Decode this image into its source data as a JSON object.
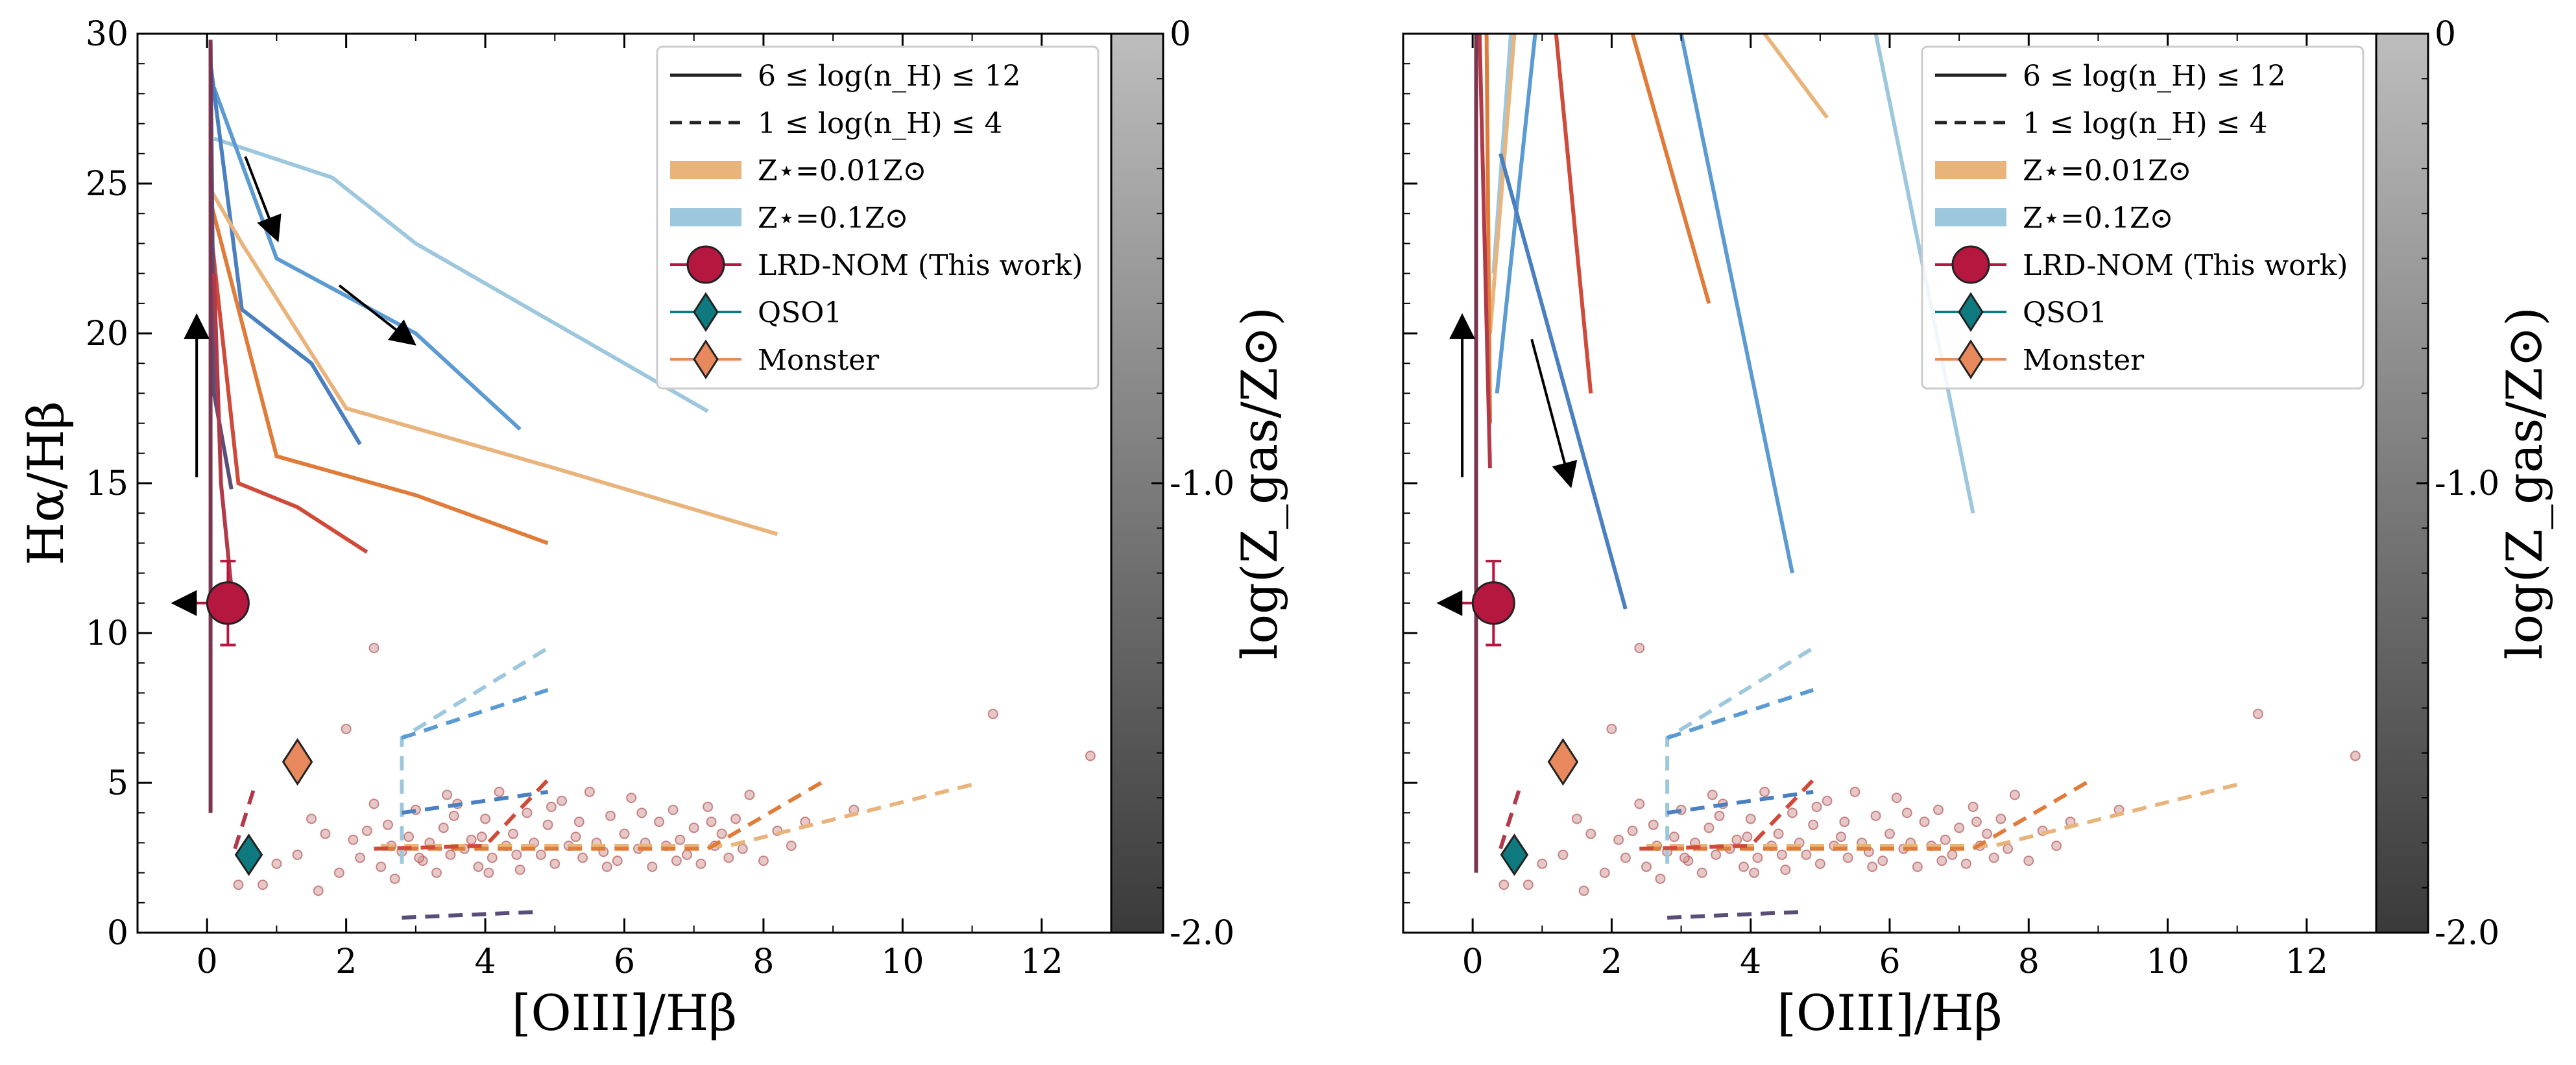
{
  "colors": {
    "lrd": "#b5173f",
    "qso1": "#0e7a7f",
    "monster": "#e8895d",
    "z001_band": "#e9b47c",
    "z01_band": "#9cc7dd",
    "scatter_fill": "#d49a9a",
    "scatter_edge": "#b55a5a",
    "cbar_top": "#bdbdbd",
    "cbar_bottom": "#3a3a3a",
    "arrow": "#000000"
  },
  "chart_data": [
    {
      "type": "scatter",
      "panel": "left",
      "xlabel": "[OIII]/Hβ",
      "ylabel": "Hα/Hβ",
      "xlim": [
        -1,
        13
      ],
      "ylim": [
        0,
        30
      ],
      "xticks": [
        "0",
        "2",
        "4",
        "6",
        "8",
        "10",
        "12"
      ],
      "yticks": [
        "0",
        "5",
        "10",
        "15",
        "20",
        "25",
        "30"
      ],
      "legend_position": "top-right",
      "legend": [
        {
          "label": "6 ≤ log(n_H) ≤ 12",
          "style": "solid-line"
        },
        {
          "label": "1 ≤ log(n_H) ≤ 4",
          "style": "dashed-line"
        },
        {
          "label": "Z⋆=0.01Z⊙",
          "style": "band",
          "color": "#e9b47c"
        },
        {
          "label": "Z⋆=0.1Z⊙",
          "style": "band",
          "color": "#9cc7dd"
        },
        {
          "label": "LRD-NOM (This work)",
          "style": "circle",
          "color": "#b5173f"
        },
        {
          "label": "QSO1",
          "style": "diamond",
          "color": "#0e7a7f"
        },
        {
          "label": "Monster",
          "style": "diamond",
          "color": "#e8895d"
        }
      ],
      "colorbar": {
        "label": "log(Z_gas/Z⊙)",
        "ticks": [
          "0",
          "-1.0",
          "-2.0"
        ],
        "range": [
          -2.0,
          0
        ]
      },
      "points": {
        "lrd_nom": {
          "x": 0.3,
          "y": 11.0,
          "yerr": [
            1.4,
            1.4
          ],
          "upper_limit_x": true
        },
        "qso1": {
          "x": 0.6,
          "y": 2.6,
          "xerr": 0.15,
          "yerr": 0.5
        },
        "monster": {
          "x": 1.3,
          "y": 5.7
        }
      },
      "model_tracks_solid": [
        {
          "color": "#9cc7dd",
          "points": [
            [
              0.1,
              26.5
            ],
            [
              1.8,
              25.2
            ],
            [
              3.0,
              23.0
            ],
            [
              4.5,
              21.0
            ],
            [
              7.2,
              17.4
            ]
          ]
        },
        {
          "color": "#5b9bd1",
          "points": [
            [
              0.1,
              28.2
            ],
            [
              1.0,
              22.5
            ],
            [
              3.0,
              20.0
            ],
            [
              4.5,
              16.8
            ]
          ]
        },
        {
          "color": "#4a7fc0",
          "points": [
            [
              0.05,
              29.0
            ],
            [
              0.5,
              20.8
            ],
            [
              1.5,
              19.0
            ],
            [
              2.2,
              16.3
            ]
          ]
        },
        {
          "color": "#e9b47c",
          "points": [
            [
              0.05,
              24.8
            ],
            [
              0.5,
              23.0
            ],
            [
              2.0,
              17.5
            ],
            [
              5.0,
              15.5
            ],
            [
              8.2,
              13.3
            ]
          ]
        },
        {
          "color": "#e07b39",
          "points": [
            [
              0.05,
              24.4
            ],
            [
              1.0,
              15.9
            ],
            [
              3.0,
              14.6
            ],
            [
              4.9,
              13.0
            ]
          ]
        },
        {
          "color": "#d04a3a",
          "points": [
            [
              0.05,
              23.5
            ],
            [
              0.45,
              15.0
            ],
            [
              1.3,
              14.2
            ],
            [
              2.3,
              12.7
            ]
          ]
        },
        {
          "color": "#5a4e78",
          "points": [
            [
              0.05,
              29.7
            ],
            [
              0.1,
              18.0
            ],
            [
              0.35,
              14.8
            ]
          ]
        },
        {
          "color": "#7a3550",
          "points": [
            [
              0.05,
              29.8
            ],
            [
              0.05,
              4.0
            ]
          ]
        },
        {
          "color": "#b23a48",
          "points": [
            [
              0.1,
              22.0
            ],
            [
              0.2,
              15.0
            ],
            [
              0.35,
              11.5
            ]
          ]
        }
      ],
      "model_tracks_dashed": [
        {
          "color": "#9cc7dd",
          "points": [
            [
              2.8,
              2.3
            ],
            [
              2.8,
              6.5
            ],
            [
              4.9,
              9.5
            ]
          ]
        },
        {
          "color": "#5b9bd1",
          "points": [
            [
              2.8,
              6.5
            ],
            [
              4.9,
              8.1
            ]
          ]
        },
        {
          "color": "#4a7fc0",
          "points": [
            [
              2.8,
              4.0
            ],
            [
              4.9,
              4.7
            ]
          ]
        },
        {
          "color": "#e9b47c",
          "points": [
            [
              2.5,
              2.9
            ],
            [
              7.5,
              2.9
            ],
            [
              11.1,
              5.0
            ]
          ]
        },
        {
          "color": "#e07b39",
          "points": [
            [
              2.5,
              2.8
            ],
            [
              7.2,
              2.8
            ],
            [
              8.9,
              5.1
            ]
          ]
        },
        {
          "color": "#d04a3a",
          "points": [
            [
              2.4,
              2.8
            ],
            [
              4.0,
              2.9
            ],
            [
              4.9,
              5.1
            ]
          ]
        },
        {
          "color": "#5a4e78",
          "points": [
            [
              2.8,
              0.5
            ],
            [
              4.8,
              0.7
            ]
          ]
        },
        {
          "color": "#b23a48",
          "points": [
            [
              0.4,
              2.8
            ],
            [
              0.7,
              5.0
            ]
          ]
        }
      ],
      "arrows": [
        {
          "from": [
            -0.15,
            15.2
          ],
          "to": [
            -0.15,
            20.5
          ]
        },
        {
          "from": [
            0.55,
            25.9
          ],
          "to": [
            1.0,
            23.2
          ]
        },
        {
          "from": [
            1.9,
            21.6
          ],
          "to": [
            2.95,
            19.7
          ]
        }
      ]
    },
    {
      "type": "scatter",
      "panel": "right",
      "xlabel": "[OIII]/Hβ",
      "ylabel": "",
      "xlim": [
        -1,
        13
      ],
      "ylim": [
        0,
        30
      ],
      "xticks": [
        "0",
        "2",
        "4",
        "6",
        "8",
        "10",
        "12"
      ],
      "yticks": [],
      "legend_position": "top-right",
      "legend": [
        {
          "label": "6 ≤ log(n_H) ≤ 12",
          "style": "solid-line"
        },
        {
          "label": "1 ≤ log(n_H) ≤ 4",
          "style": "dashed-line"
        },
        {
          "label": "Z⋆=0.01Z⊙",
          "style": "band",
          "color": "#e9b47c"
        },
        {
          "label": "Z⋆=0.1Z⊙",
          "style": "band",
          "color": "#9cc7dd"
        },
        {
          "label": "LRD-NOM (This work)",
          "style": "circle",
          "color": "#b5173f"
        },
        {
          "label": "QSO1",
          "style": "diamond",
          "color": "#0e7a7f"
        },
        {
          "label": "Monster",
          "style": "diamond",
          "color": "#e8895d"
        }
      ],
      "colorbar": {
        "label": "log(Z_gas/Z⊙)",
        "ticks": [
          "0",
          "-1.0",
          "-2.0"
        ],
        "range": [
          -2.0,
          0
        ]
      },
      "points": {
        "lrd_nom": {
          "x": 0.3,
          "y": 11.0,
          "yerr": [
            1.4,
            1.4
          ],
          "upper_limit_x": true
        },
        "qso1": {
          "x": 0.6,
          "y": 2.6,
          "xerr": 0.15,
          "yerr": 0.5
        },
        "monster": {
          "x": 1.3,
          "y": 5.7
        }
      },
      "model_tracks_solid": [
        {
          "color": "#9cc7dd",
          "points": [
            [
              5.8,
              30.0
            ],
            [
              7.2,
              14.0
            ]
          ]
        },
        {
          "color": "#e9b47c",
          "points": [
            [
              4.2,
              30.0
            ],
            [
              5.1,
              27.2
            ]
          ]
        },
        {
          "color": "#5b9bd1",
          "points": [
            [
              3.0,
              30.0
            ],
            [
              4.6,
              12.0
            ]
          ]
        },
        {
          "color": "#e07b39",
          "points": [
            [
              2.3,
              30.0
            ],
            [
              3.4,
              21.0
            ]
          ]
        },
        {
          "color": "#9cc7dd",
          "points": [
            [
              0.55,
              30.0
            ],
            [
              0.3,
              22.0
            ]
          ]
        },
        {
          "color": "#5b9bd1",
          "points": [
            [
              0.9,
              30.0
            ],
            [
              0.35,
              18.0
            ]
          ]
        },
        {
          "color": "#e9b47c",
          "points": [
            [
              0.6,
              30.0
            ],
            [
              0.25,
              20.0
            ]
          ]
        },
        {
          "color": "#4a7fc0",
          "points": [
            [
              0.4,
              26.0
            ],
            [
              2.2,
              10.8
            ]
          ]
        },
        {
          "color": "#d04a3a",
          "points": [
            [
              1.2,
              30.0
            ],
            [
              1.7,
              18.0
            ]
          ]
        },
        {
          "color": "#e07b39",
          "points": [
            [
              0.2,
              30.0
            ],
            [
              0.25,
              17.0
            ]
          ]
        },
        {
          "color": "#b23a48",
          "points": [
            [
              0.1,
              30.0
            ],
            [
              0.25,
              15.5
            ]
          ]
        },
        {
          "color": "#7a3550",
          "points": [
            [
              0.05,
              30.0
            ],
            [
              0.05,
              2.0
            ]
          ]
        }
      ],
      "model_tracks_dashed": [
        {
          "color": "#9cc7dd",
          "points": [
            [
              2.8,
              2.3
            ],
            [
              2.8,
              6.5
            ],
            [
              4.9,
              9.5
            ]
          ]
        },
        {
          "color": "#5b9bd1",
          "points": [
            [
              2.8,
              6.5
            ],
            [
              4.9,
              8.1
            ]
          ]
        },
        {
          "color": "#4a7fc0",
          "points": [
            [
              2.8,
              4.0
            ],
            [
              4.9,
              4.7
            ]
          ]
        },
        {
          "color": "#e9b47c",
          "points": [
            [
              2.5,
              2.9
            ],
            [
              7.5,
              2.9
            ],
            [
              11.1,
              5.0
            ]
          ]
        },
        {
          "color": "#e07b39",
          "points": [
            [
              2.5,
              2.8
            ],
            [
              7.2,
              2.8
            ],
            [
              8.9,
              5.1
            ]
          ]
        },
        {
          "color": "#d04a3a",
          "points": [
            [
              2.4,
              2.8
            ],
            [
              4.0,
              2.9
            ],
            [
              4.9,
              5.1
            ]
          ]
        },
        {
          "color": "#5a4e78",
          "points": [
            [
              2.8,
              0.5
            ],
            [
              4.8,
              0.7
            ]
          ]
        },
        {
          "color": "#b23a48",
          "points": [
            [
              0.4,
              2.8
            ],
            [
              0.7,
              5.0
            ]
          ]
        }
      ],
      "arrows": [
        {
          "from": [
            -0.15,
            15.2
          ],
          "to": [
            -0.15,
            20.5
          ]
        },
        {
          "from": [
            0.85,
            19.8
          ],
          "to": [
            1.4,
            15.0
          ]
        }
      ]
    }
  ],
  "scatter_sample": [
    [
      0.45,
      1.6
    ],
    [
      0.8,
      1.6
    ],
    [
      1.0,
      2.3
    ],
    [
      1.3,
      2.6
    ],
    [
      1.5,
      3.8
    ],
    [
      1.6,
      1.4
    ],
    [
      1.7,
      3.3
    ],
    [
      1.9,
      2.0
    ],
    [
      2.0,
      6.8
    ],
    [
      2.1,
      3.1
    ],
    [
      2.2,
      2.5
    ],
    [
      2.4,
      4.3
    ],
    [
      2.4,
      9.5
    ],
    [
      2.5,
      2.2
    ],
    [
      2.6,
      3.6
    ],
    [
      2.7,
      1.8
    ],
    [
      2.8,
      2.7
    ],
    [
      2.9,
      3.2
    ],
    [
      3.0,
      4.1
    ],
    [
      3.1,
      2.4
    ],
    [
      3.2,
      3.0
    ],
    [
      3.3,
      2.0
    ],
    [
      3.4,
      3.5
    ],
    [
      3.5,
      2.6
    ],
    [
      3.6,
      4.3
    ],
    [
      3.7,
      2.8
    ],
    [
      3.8,
      3.1
    ],
    [
      3.9,
      2.2
    ],
    [
      4.0,
      3.8
    ],
    [
      4.1,
      2.5
    ],
    [
      4.2,
      4.7
    ],
    [
      4.3,
      2.9
    ],
    [
      4.4,
      3.3
    ],
    [
      4.5,
      2.1
    ],
    [
      4.6,
      4.0
    ],
    [
      4.7,
      3.0
    ],
    [
      4.8,
      2.6
    ],
    [
      4.9,
      3.6
    ],
    [
      5.0,
      2.3
    ],
    [
      5.1,
      4.4
    ],
    [
      5.2,
      2.9
    ],
    [
      5.3,
      3.2
    ],
    [
      5.4,
      2.5
    ],
    [
      5.5,
      4.7
    ],
    [
      5.6,
      3.0
    ],
    [
      5.7,
      2.7
    ],
    [
      5.8,
      3.9
    ],
    [
      5.9,
      2.4
    ],
    [
      6.0,
      3.3
    ],
    [
      6.1,
      4.5
    ],
    [
      6.2,
      2.8
    ],
    [
      6.3,
      3.0
    ],
    [
      6.4,
      2.2
    ],
    [
      6.5,
      3.7
    ],
    [
      6.6,
      2.9
    ],
    [
      6.7,
      4.1
    ],
    [
      6.8,
      3.1
    ],
    [
      6.9,
      2.6
    ],
    [
      7.0,
      3.5
    ],
    [
      7.1,
      2.3
    ],
    [
      7.2,
      4.2
    ],
    [
      7.3,
      2.9
    ],
    [
      7.4,
      3.3
    ],
    [
      7.5,
      2.5
    ],
    [
      7.6,
      3.8
    ],
    [
      7.7,
      2.8
    ],
    [
      7.8,
      4.6
    ],
    [
      8.0,
      2.4
    ],
    [
      8.2,
      3.4
    ],
    [
      8.4,
      2.9
    ],
    [
      8.6,
      3.7
    ],
    [
      9.3,
      4.1
    ],
    [
      11.3,
      7.3
    ],
    [
      12.7,
      5.9
    ],
    [
      3.05,
      2.5
    ],
    [
      3.45,
      4.6
    ],
    [
      3.95,
      3.2
    ],
    [
      4.45,
      2.6
    ],
    [
      4.95,
      4.2
    ],
    [
      5.35,
      3.7
    ],
    [
      5.75,
      2.2
    ],
    [
      6.25,
      4.0
    ],
    [
      6.75,
      2.4
    ],
    [
      7.25,
      3.7
    ],
    [
      2.3,
      3.4
    ],
    [
      2.65,
      2.9
    ],
    [
      3.55,
      3.9
    ],
    [
      4.05,
      2.0
    ]
  ]
}
